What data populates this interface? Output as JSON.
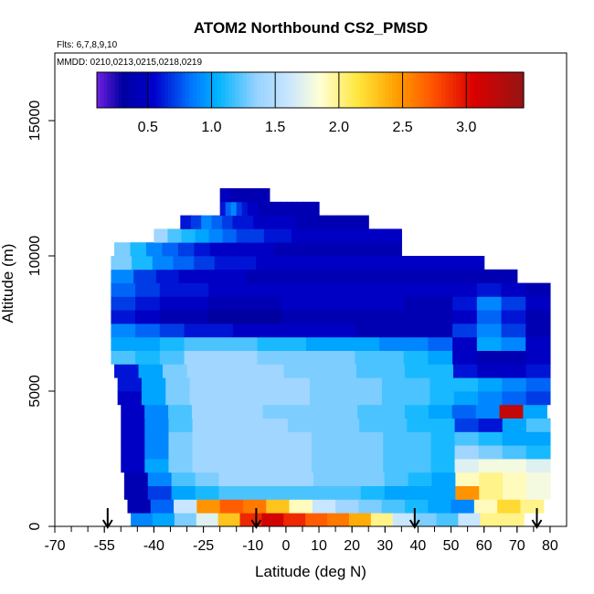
{
  "chart_data": {
    "type": "heatmap",
    "title": "ATOM2 Northbound CS2_PMSD",
    "flights_label": "Flts: 6,7,8,9,10",
    "dates_label": "MMDD: 0210,0213,0215,0218,0219",
    "xlabel": "Latitude (deg N)",
    "ylabel": "Altitude (m)",
    "xlim": [
      -70,
      85
    ],
    "ylim": [
      0,
      17500
    ],
    "x_ticks": [
      "-70",
      "-55",
      "-40",
      "-25",
      "-10",
      "0",
      "10",
      "20",
      "30",
      "40",
      "50",
      "60",
      "70",
      "80"
    ],
    "x_tick_values": [
      -70,
      -55,
      -40,
      -25,
      -10,
      0,
      10,
      20,
      30,
      40,
      50,
      60,
      70,
      80
    ],
    "y_ticks": [
      "0",
      "5000",
      "10000",
      "15000"
    ],
    "y_tick_values": [
      0,
      5000,
      10000,
      15000
    ],
    "colorbar": {
      "range": [
        0.1,
        3.45
      ],
      "tick_labels": [
        "0.5",
        "1.0",
        "1.5",
        "2.0",
        "2.5",
        "3.0"
      ],
      "tick_values": [
        0.5,
        1.0,
        1.5,
        2.0,
        2.5,
        3.0
      ]
    },
    "arrow_latitudes": [
      -54,
      -9,
      39,
      76
    ],
    "layers": [
      {
        "alt0": 0,
        "alt1": 500,
        "lat0": -47,
        "lat1": 72,
        "values": [
          0.9,
          1.0,
          1.3,
          1.7,
          2.3,
          2.9,
          3.1,
          2.9,
          2.7,
          2.6,
          2.4,
          2.0,
          1.6,
          1.3,
          1.2,
          1.6,
          2.0,
          2.0
        ]
      },
      {
        "alt0": 500,
        "alt1": 1000,
        "lat0": -48,
        "lat1": 78,
        "values": [
          0.4,
          0.8,
          1.6,
          2.5,
          2.7,
          2.6,
          2.3,
          1.9,
          1.6,
          1.4,
          1.3,
          1.2,
          1.1,
          1.0,
          0.9,
          1.9,
          2.2,
          2.0
        ]
      },
      {
        "alt0": 1000,
        "alt1": 1500,
        "lat0": -49,
        "lat1": 80,
        "values": [
          0.4,
          0.7,
          1.0,
          1.1,
          1.2,
          1.2,
          1.2,
          1.2,
          1.2,
          1.2,
          1.1,
          1.0,
          1.0,
          1.0,
          2.5,
          2.0,
          1.9,
          1.8
        ]
      },
      {
        "alt0": 1500,
        "alt1": 2000,
        "lat0": -49,
        "lat1": 80,
        "values": [
          0.4,
          0.9,
          1.2,
          1.3,
          1.4,
          1.4,
          1.4,
          1.4,
          1.3,
          1.3,
          1.3,
          1.2,
          1.1,
          1.0,
          1.9,
          2.0,
          1.9,
          1.8
        ]
      },
      {
        "alt0": 2000,
        "alt1": 2500,
        "lat0": -50,
        "lat1": 80,
        "values": [
          0.5,
          1.0,
          1.3,
          1.4,
          1.4,
          1.4,
          1.4,
          1.4,
          1.3,
          1.3,
          1.3,
          1.2,
          1.2,
          1.1,
          1.7,
          1.8,
          1.8,
          1.7
        ]
      },
      {
        "alt0": 2500,
        "alt1": 3000,
        "lat0": -50,
        "lat1": 80,
        "values": [
          0.5,
          0.9,
          1.3,
          1.4,
          1.4,
          1.4,
          1.4,
          1.4,
          1.3,
          1.3,
          1.3,
          1.2,
          1.2,
          1.1,
          1.4,
          1.3,
          1.2,
          1.1
        ]
      },
      {
        "alt0": 3000,
        "alt1": 3500,
        "lat0": -50,
        "lat1": 80,
        "values": [
          0.5,
          0.9,
          1.3,
          1.4,
          1.4,
          1.4,
          1.4,
          1.4,
          1.3,
          1.3,
          1.3,
          1.2,
          1.2,
          1.1,
          1.2,
          1.1,
          1.0,
          1.0
        ]
      },
      {
        "alt0": 3500,
        "alt1": 4000,
        "lat0": -50,
        "lat1": 80,
        "values": [
          0.5,
          0.9,
          1.2,
          1.4,
          1.4,
          1.4,
          1.4,
          1.3,
          1.3,
          1.3,
          1.2,
          1.2,
          1.1,
          1.1,
          0.7,
          0.6,
          1.0,
          1.2
        ]
      },
      {
        "alt0": 4000,
        "alt1": 4500,
        "lat0": -50,
        "lat1": 79,
        "values": [
          0.5,
          0.9,
          1.2,
          1.4,
          1.4,
          1.4,
          1.3,
          1.3,
          1.3,
          1.3,
          1.2,
          1.2,
          1.1,
          1.0,
          0.8,
          0.9,
          3.2,
          1.0
        ]
      },
      {
        "alt0": 4500,
        "alt1": 5000,
        "lat0": -51,
        "lat1": 80,
        "values": [
          0.5,
          1.0,
          1.3,
          1.4,
          1.4,
          1.4,
          1.4,
          1.4,
          1.3,
          1.3,
          1.3,
          1.2,
          1.2,
          1.1,
          1.0,
          0.9,
          0.8,
          0.7
        ]
      },
      {
        "alt0": 5000,
        "alt1": 5500,
        "lat0": -51,
        "lat1": 80,
        "values": [
          0.6,
          1.0,
          1.3,
          1.4,
          1.4,
          1.4,
          1.4,
          1.4,
          1.3,
          1.3,
          1.3,
          1.2,
          1.2,
          1.1,
          1.1,
          1.0,
          0.9,
          0.8
        ]
      },
      {
        "alt0": 5500,
        "alt1": 6000,
        "lat0": -52,
        "lat1": 80,
        "values": [
          0.6,
          1.0,
          1.3,
          1.4,
          1.4,
          1.4,
          1.4,
          1.3,
          1.3,
          1.3,
          1.2,
          1.2,
          1.1,
          1.1,
          0.6,
          0.5,
          0.5,
          0.6
        ]
      },
      {
        "alt0": 6000,
        "alt1": 6500,
        "lat0": -53,
        "lat1": 80,
        "values": [
          1.2,
          1.1,
          1.2,
          1.4,
          1.4,
          1.4,
          1.3,
          1.3,
          1.3,
          1.3,
          1.2,
          1.2,
          1.1,
          1.0,
          0.5,
          0.4,
          0.4,
          0.5
        ]
      },
      {
        "alt0": 6500,
        "alt1": 7000,
        "lat0": -53,
        "lat1": 80,
        "values": [
          1.0,
          1.0,
          1.1,
          1.2,
          1.2,
          1.2,
          1.1,
          1.1,
          1.0,
          1.0,
          1.0,
          0.9,
          0.9,
          0.8,
          0.5,
          1.0,
          0.9,
          0.5
        ]
      },
      {
        "alt0": 7000,
        "alt1": 7500,
        "lat0": -53,
        "lat1": 80,
        "values": [
          0.9,
          0.8,
          0.7,
          0.6,
          0.6,
          0.5,
          0.5,
          0.5,
          0.5,
          0.5,
          0.4,
          0.4,
          0.4,
          0.4,
          0.7,
          0.9,
          0.7,
          0.4
        ]
      },
      {
        "alt0": 7500,
        "alt1": 8000,
        "lat0": -53,
        "lat1": 80,
        "values": [
          0.6,
          0.5,
          0.4,
          0.4,
          0.3,
          0.3,
          0.3,
          0.4,
          0.4,
          0.4,
          0.4,
          0.4,
          0.4,
          0.4,
          0.5,
          0.8,
          0.6,
          0.4
        ]
      },
      {
        "alt0": 8000,
        "alt1": 8500,
        "lat0": -53,
        "lat1": 80,
        "values": [
          0.7,
          0.6,
          0.5,
          0.5,
          0.4,
          0.4,
          0.4,
          0.5,
          0.5,
          0.5,
          0.5,
          0.5,
          0.4,
          0.4,
          0.6,
          0.9,
          0.7,
          0.5
        ]
      },
      {
        "alt0": 8500,
        "alt1": 9000,
        "lat0": -53,
        "lat1": 80,
        "values": [
          0.8,
          0.7,
          0.6,
          0.6,
          0.5,
          0.5,
          0.5,
          0.5,
          0.5,
          0.5,
          0.5,
          0.5,
          0.5,
          0.5,
          0.5,
          0.6,
          0.5,
          0.4
        ]
      },
      {
        "alt0": 9000,
        "alt1": 9500,
        "lat0": -53,
        "lat1": 70,
        "values": [
          0.9,
          0.7,
          0.6,
          0.5,
          0.5,
          0.5,
          0.4,
          0.4,
          0.4,
          0.4,
          0.4,
          0.4,
          0.4,
          0.4,
          0.4,
          0.4,
          0.4,
          0.4
        ]
      },
      {
        "alt0": 9500,
        "alt1": 10000,
        "lat0": -53,
        "lat1": 60,
        "values": [
          1.3,
          1.1,
          0.9,
          0.8,
          0.7,
          0.6,
          0.6,
          0.5,
          0.5,
          0.5,
          0.5,
          0.5,
          0.5,
          0.5,
          0.5,
          0.5,
          0.5,
          0.5
        ]
      },
      {
        "alt0": 10000,
        "alt1": 10500,
        "lat0": -52,
        "lat1": 35,
        "values": [
          1.3,
          1.1,
          0.9,
          0.8,
          0.7,
          0.6,
          0.5,
          0.5,
          0.5,
          0.5,
          0.4,
          0.4,
          0.4,
          0.4,
          0.4,
          0.4,
          0.4,
          0.4
        ]
      },
      {
        "alt0": 10500,
        "alt1": 11000,
        "lat0": -40,
        "lat1": 35,
        "values": [
          1.4,
          1.2,
          1.1,
          1.0,
          0.9,
          0.8,
          0.7,
          0.7,
          0.6,
          0.6,
          0.5,
          0.5,
          0.5,
          0.5,
          0.5,
          0.5,
          0.5,
          0.5
        ]
      },
      {
        "alt0": 11000,
        "alt1": 11500,
        "lat0": -32,
        "lat1": 25,
        "values": [
          0.6,
          0.7,
          0.9,
          0.8,
          0.7,
          0.6,
          0.6,
          0.5,
          0.5,
          0.5,
          0.5,
          0.4,
          0.4,
          0.4,
          0.4,
          0.4,
          0.4,
          0.4
        ]
      },
      {
        "alt0": 11500,
        "alt1": 12000,
        "lat0": -20,
        "lat1": 10,
        "values": [
          0.6,
          0.8,
          0.9,
          0.7,
          0.6,
          0.5,
          0.5,
          0.4,
          0.4,
          0.4,
          0.4,
          0.4,
          0.4,
          0.4,
          0.4,
          0.4,
          0.4,
          0.4
        ]
      },
      {
        "alt0": 12000,
        "alt1": 12500,
        "lat0": -20,
        "lat1": -5,
        "values": [
          0.4,
          0.5,
          0.5,
          0.4,
          0.4,
          0.4,
          0.4,
          0.4,
          0.4,
          0.4,
          0.4,
          0.4,
          0.4,
          0.4,
          0.4,
          0.4,
          0.4,
          0.4
        ]
      }
    ]
  }
}
